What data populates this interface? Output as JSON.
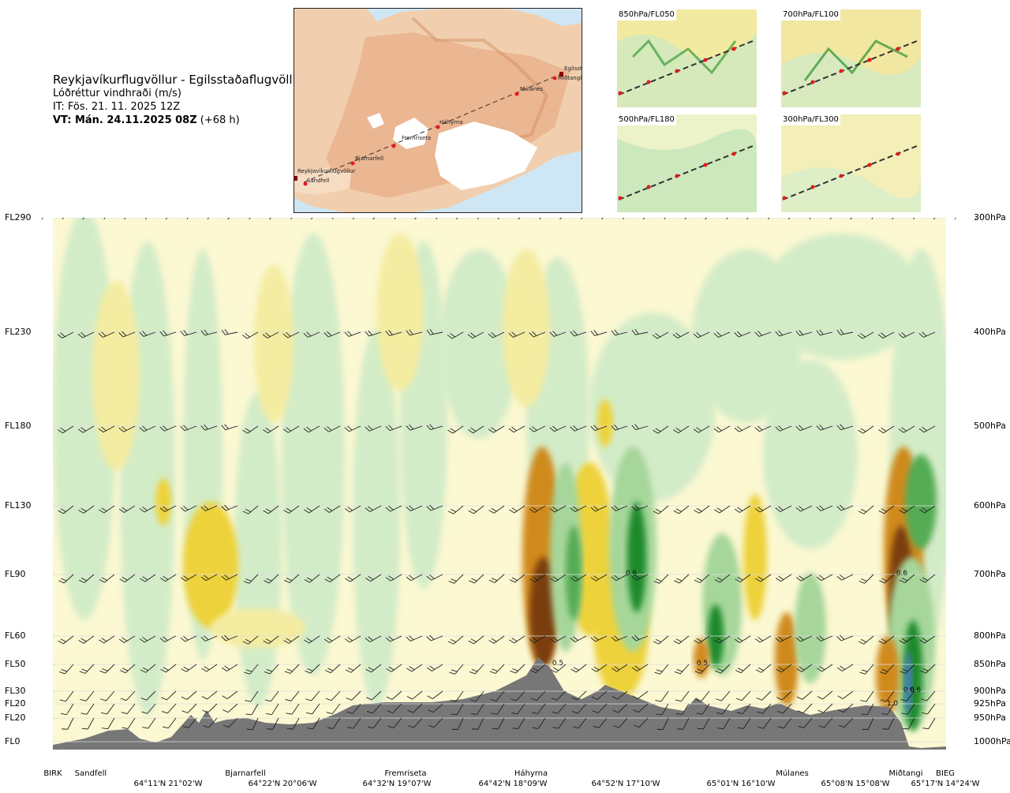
{
  "header": {
    "route_title": "Reykjavíkurflugvöllur - Egilsstaðaflugvöllur",
    "parameter": "Lóðréttur vindhraði (m/s)",
    "issue_time": "IT: Fös. 21. 11. 2025 12Z",
    "valid_time_bold": "VT: Mán. 24.11.2025 08Z",
    "valid_time_offset": "(+68 h)"
  },
  "map": {
    "places": [
      "Reykjavíkurflugvöllur",
      "Sandfell",
      "Bjarnarfell",
      "Fremriseta",
      "Háhyrna",
      "Múlanes",
      "Miðtangi",
      "Egilsst"
    ]
  },
  "mini_maps": [
    "850hPa/FL050",
    "700hPa/FL100",
    "500hPa/FL180",
    "300hPa/FL300"
  ],
  "colors": {
    "strong_up": "#7a3d0a",
    "up": "#d08a1a",
    "weak_up": "#eed23a",
    "faint_up": "#f4eca0",
    "neutral": "#fbf8d2",
    "faint_down": "#d3ecc8",
    "weak_down": "#a6d69a",
    "down": "#55ac55",
    "strong_down": "#1f8a2c",
    "very_strong_down": "#4a7fc0",
    "terrain": "#777777"
  },
  "chart_data": {
    "type": "heatmap",
    "title": "Lóðréttur vindhraði (m/s)",
    "levels": [
      {
        "fl": "FL290",
        "hpa": "300hPa"
      },
      {
        "fl": "FL230",
        "hpa": "400hPa"
      },
      {
        "fl": "FL180",
        "hpa": "500hPa"
      },
      {
        "fl": "FL130",
        "hpa": "600hPa"
      },
      {
        "fl": "FL90",
        "hpa": "700hPa"
      },
      {
        "fl": "FL60",
        "hpa": "800hPa"
      },
      {
        "fl": "FL50",
        "hpa": "850hPa"
      },
      {
        "fl": "FL30",
        "hpa": "900hPa"
      },
      {
        "fl": "FL20",
        "hpa": "925hPa"
      },
      {
        "fl": "FL20",
        "hpa": "950hPa"
      },
      {
        "fl": "FL0",
        "hpa": "1000hPa"
      }
    ],
    "sites": [
      "BIRK",
      "Sandfell",
      "Bjarnarfell",
      "Fremriseta",
      "Háhyrna",
      "Múlanes",
      "Miðtangi",
      "BIEG"
    ],
    "coordinates": [
      "64°11'N 21°02'W",
      "64°22'N 20°06'W",
      "64°32'N 19°07'W",
      "64°42'N 18°09'W",
      "64°52'N 17°10'W",
      "65°01'N 16°10'W",
      "65°08'N 15°08'W",
      "65°17'N 14°24'W"
    ],
    "contour_labels": [
      "0.6",
      "0.6",
      "0.5",
      "0.5",
      "0.6",
      "0.6",
      "1.0"
    ]
  }
}
